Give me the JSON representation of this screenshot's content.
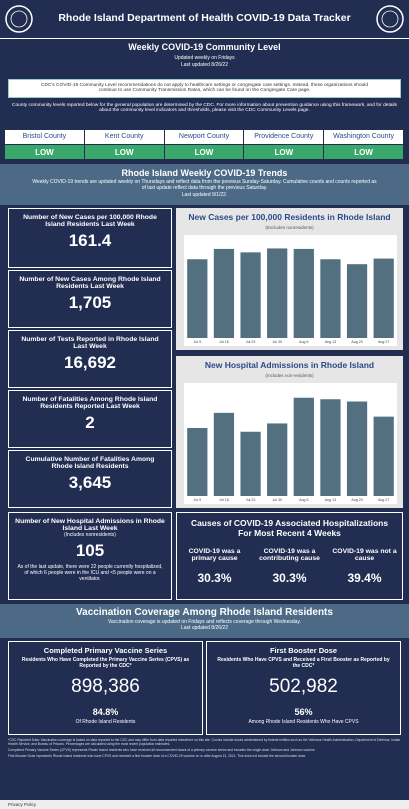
{
  "header": {
    "title": "Rhode Island Department of Health COVID-19 Data Tracker"
  },
  "community": {
    "title": "Weekly COVID-19 Community Level",
    "updated": "Updated weekly on Fridays",
    "last_updated": "Last updated 8/26/22",
    "cdc_note": "CDC's COVID-19 Community Level recommendations do not apply to healthcare settings or congregate care settings. Instead, these organizations should continue to use Community Transmission Rates, which can be found on the Congregate Care page.",
    "county_note": "County community levels reported below for the general population are determined by the CDC. For more information about prevention guidance using this framework, and for details about the community level indicators and thresholds, please visit the CDC Community Levels page.",
    "counties": [
      {
        "name": "Bristol County",
        "level": "LOW"
      },
      {
        "name": "Kent County",
        "level": "LOW"
      },
      {
        "name": "Newport County",
        "level": "LOW"
      },
      {
        "name": "Providence County",
        "level": "LOW"
      },
      {
        "name": "Washington County",
        "level": "LOW"
      }
    ]
  },
  "trends": {
    "title": "Rhode Island Weekly COVID-19 Trends",
    "note": "Weekly COVID-19 trends are updated weekly on Thursdays and reflect data from the previous Sunday-Saturday. Cumulative counts and counts reported as of last update reflect data through the previous Saturday.",
    "last_updated": "Last updated 9/1/22."
  },
  "stats": [
    {
      "label": "Number of New Cases per 100,000 Rhode Island Residents Last Week",
      "value": "161.4"
    },
    {
      "label": "Number of New Cases Among Rhode Island Residents Last Week",
      "value": "1,705"
    },
    {
      "label": "Number of Tests Reported in Rhode Island Last Week",
      "value": "16,692"
    },
    {
      "label": "Number of Fatalities Among Rhode Island Residents Reported Last Week",
      "value": "2"
    },
    {
      "label": "Cumulative Number of Fatalities Among Rhode Island Residents",
      "value": "3,645"
    },
    {
      "label": "Number of New Hospital Admissions in Rhode Island Last Week",
      "sublabel": "(Includes nonresidents)",
      "value": "105",
      "note": "As of the last update, there were 22 people currently hospitalized, of which 6 people were in the ICU and <5 people were on a ventilator."
    }
  ],
  "chart_data": [
    {
      "type": "bar",
      "title": "New Cases per 100,000 Residents in Rhode Island",
      "subtitle": "(Excludes nonresidents)",
      "categories": [
        "Jul 9",
        "Jul 16",
        "Jul 23",
        "Jul 30",
        "Aug 6",
        "Aug 13",
        "Aug 20",
        "Aug 27"
      ],
      "values": [
        160,
        181,
        174,
        182,
        181,
        160,
        150,
        161.4
      ],
      "color": "#52707f"
    },
    {
      "type": "bar",
      "title": "New Hospital Admissions in Rhode Island",
      "subtitle": "(Includes non-residents)",
      "categories": [
        "Jul 9",
        "Jul 16",
        "Jul 23",
        "Jul 30",
        "Aug 6",
        "Aug 13",
        "Aug 20",
        "Aug 27"
      ],
      "values": [
        90,
        110,
        85,
        96,
        130,
        128,
        125,
        105
      ],
      "color": "#52707f"
    }
  ],
  "causes": {
    "title": "Causes of COVID-19 Associated Hospitalizations For Most Recent 4 Weeks",
    "items": [
      {
        "label": "COVID-19 was a primary cause",
        "value": "30.3%"
      },
      {
        "label": "COVID-19 was a contributing cause",
        "value": "30.3%"
      },
      {
        "label": "COVID-19 was not a cause",
        "value": "39.4%"
      }
    ]
  },
  "vaccination": {
    "title": "Vaccination Coverage Among Rhode Island Residents",
    "note": "Vaccination coverage is updated on Fridays and reflects coverage through Wednesday.",
    "last_updated": "Last updated 8/26/22",
    "panels": [
      {
        "title": "Completed Primary Vaccine Series",
        "subtitle": "Residents Who Have Completed the Primary Vaccine Series (CPVS) as Reported by the CDC*",
        "value": "898,386",
        "percent": "84.8%",
        "caption": "Of Rhode Island Residents"
      },
      {
        "title": "First Booster Dose",
        "subtitle": "Residents Who Have CPVS and Received a First Booster as Reported by the CDC*",
        "value": "502,982",
        "percent": "56%",
        "caption": "Among Rhode Island Residents Who Have CPVS"
      }
    ]
  },
  "fine_print": [
    "*CDC Reported Data: Vaccination coverage is based on data reported to the CDC and may differ from data reported elsewhere on this site. Counts include doses administered by federal entities such as the Veterans Health Administration, Department of Defense, Indian Health Service, and Bureau of Prisons. Percentages are calculated using the most recent population estimates.",
    "Completed Primary Vaccine Series (CPVS) represents Rhode Island residents who have received all recommended doses of a primary vaccine series and includes the single-dose Johnson and Johnson vaccine.",
    "First Booster Dose represents Rhode Island residents who have CPVS and received a first booster dose of a COVID-19 vaccine on or after August 13, 2021. This does not include the second booster dose."
  ],
  "footer": {
    "text": "Privacy Policy"
  }
}
